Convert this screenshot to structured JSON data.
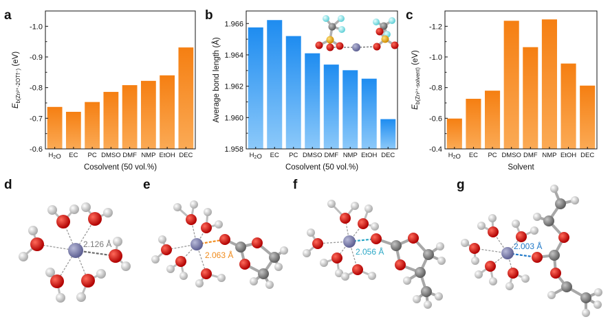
{
  "panels": {
    "a": "a",
    "b": "b",
    "c": "c",
    "d": "d",
    "e": "e",
    "f": "f",
    "g": "g"
  },
  "chart_data": [
    {
      "id": "a",
      "type": "bar",
      "title": "",
      "xlabel": "Cosolvent (50 vol.%)",
      "ylabel": "E_b(Zn²⁺-2OTf⁻) (eV)",
      "categories": [
        "H₂O",
        "EC",
        "PC",
        "DMSO",
        "DMF",
        "NMP",
        "EtOH",
        "DEC"
      ],
      "values": [
        -0.737,
        -0.721,
        -0.753,
        -0.786,
        -0.808,
        -0.822,
        -0.84,
        -0.931
      ],
      "ylim": [
        -0.6,
        -1.05
      ],
      "yticks": [
        -0.6,
        -0.7,
        -0.8,
        -0.9,
        -1.0
      ],
      "ytick_labels": [
        "-0.6",
        "-0.7",
        "-0.8",
        "-0.9",
        "-1.0"
      ],
      "color": "#f7891e"
    },
    {
      "id": "b",
      "type": "bar",
      "title": "",
      "xlabel": "Cosolvent (50 vol.%)",
      "ylabel": "Average bond length (Å)",
      "categories": [
        "H₂O",
        "EC",
        "PC",
        "DMSO",
        "DMF",
        "NMP",
        "EtOH",
        "DEC"
      ],
      "values": [
        1.96575,
        1.96622,
        1.9652,
        1.9641,
        1.96338,
        1.96302,
        1.96248,
        1.9599
      ],
      "ylim": [
        1.958,
        1.9668
      ],
      "yticks": [
        1.958,
        1.96,
        1.962,
        1.964,
        1.966
      ],
      "ytick_labels": [
        "1.958",
        "1.960",
        "1.962",
        "1.964",
        "1.966"
      ],
      "color": "#2c96f0"
    },
    {
      "id": "c",
      "type": "bar",
      "title": "",
      "xlabel": "Solvent",
      "ylabel": "E_b(Zn²⁺-solvent) (eV)",
      "categories": [
        "H₂O",
        "EC",
        "PC",
        "DMSO",
        "DMF",
        "NMP",
        "EtOH",
        "DEC"
      ],
      "values": [
        -0.598,
        -0.727,
        -0.78,
        -1.236,
        -1.064,
        -1.245,
        -0.957,
        -0.813
      ],
      "ylim": [
        -0.4,
        -1.3
      ],
      "yticks": [
        -0.4,
        -0.6,
        -0.8,
        -1.0,
        -1.2
      ],
      "ytick_labels": [
        "-0.4",
        "-0.6",
        "-0.8",
        "-1.0",
        "-1.2"
      ],
      "color": "#f7891e"
    }
  ],
  "structures": {
    "d": {
      "distance_label": "2.126 Å",
      "color": "#7a7a7a"
    },
    "e": {
      "distance_label": "2.063 Å",
      "color": "#f08a1a"
    },
    "f": {
      "distance_label": "2.056 Å",
      "color": "#2aa7c6"
    },
    "g": {
      "distance_label": "2.003 Å",
      "color": "#1f78c8"
    }
  },
  "atom_colors": {
    "zn": "#7d7fb0",
    "o": "#e01818",
    "c": "#8a8a8a",
    "h": "#dadada",
    "s": "#f2b21a",
    "f": "#8ee8ee"
  }
}
